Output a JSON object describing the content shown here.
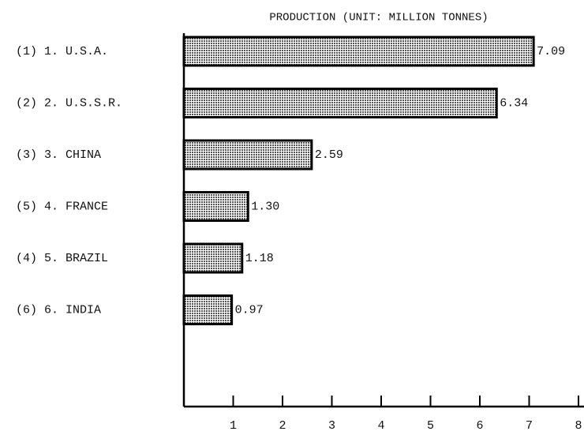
{
  "chart_data": {
    "type": "bar",
    "orientation": "horizontal",
    "title": "PRODUCTION (UNIT: MILLION TONNES)",
    "categories": [
      "(1) 1. U.S.A.",
      "(2) 2. U.S.S.R.",
      "(3) 3. CHINA",
      "(5) 4. FRANCE",
      "(4) 5. BRAZIL",
      "(6) 6. INDIA"
    ],
    "values": [
      7.09,
      6.34,
      2.59,
      1.3,
      1.18,
      0.97
    ],
    "value_labels": [
      "7.09",
      "6.34",
      "2.59",
      "1.30",
      "1.18",
      "0.97"
    ],
    "xlim": [
      0,
      8
    ],
    "xticks": [
      1,
      2,
      3,
      4,
      5,
      6,
      7,
      8
    ],
    "color": "#555555"
  }
}
